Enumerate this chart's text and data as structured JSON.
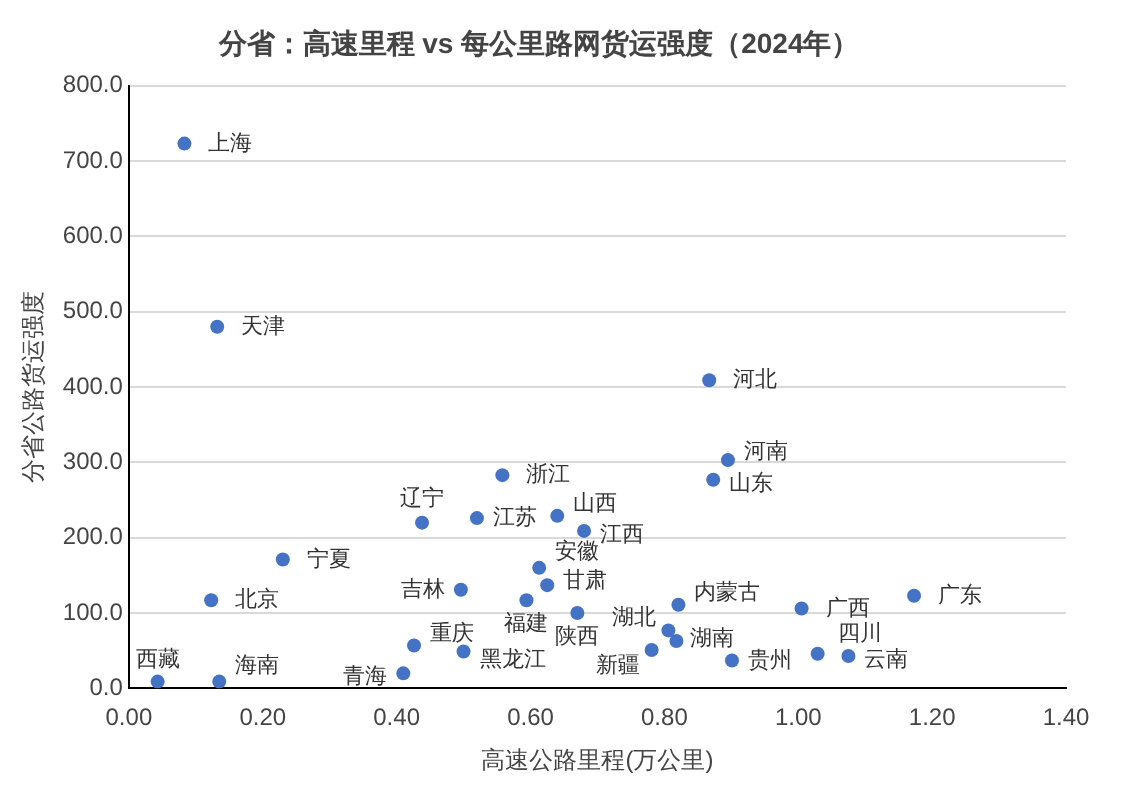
{
  "chart_data": {
    "type": "scatter",
    "title": "分省：高速里程 vs 每公里路网货运强度（2024年）",
    "xlabel": "高速公路里程(万公里)",
    "ylabel": "分省公路货运强度",
    "xlim": [
      0,
      1.4
    ],
    "xticks": [
      {
        "value": 0,
        "label": "0.00"
      },
      {
        "value": 0.2,
        "label": "0.20"
      },
      {
        "value": 0.4,
        "label": "0.40"
      },
      {
        "value": 0.6,
        "label": "0.60"
      },
      {
        "value": 0.8,
        "label": "0.80"
      },
      {
        "value": 1,
        "label": "1.00"
      },
      {
        "value": 1.2,
        "label": "1.20"
      },
      {
        "value": 1.4,
        "label": "1.40"
      }
    ],
    "ylim": [
      0,
      800
    ],
    "yticks": [
      {
        "value": 0,
        "label": "0.0"
      },
      {
        "value": 100,
        "label": "100.0"
      },
      {
        "value": 200,
        "label": "200.0"
      },
      {
        "value": 300,
        "label": "300.0"
      },
      {
        "value": 400,
        "label": "400.0"
      },
      {
        "value": 500,
        "label": "500.0"
      },
      {
        "value": 600,
        "label": "600.0"
      },
      {
        "value": 700,
        "label": "700.0"
      },
      {
        "value": 800,
        "label": "800.0"
      }
    ],
    "grid": "y",
    "legend": false,
    "marker": "circle",
    "series": [
      {
        "name": "上海",
        "color": "#4472c4",
        "x": [
          0.083
        ],
        "values": [
          723
        ]
      },
      {
        "name": "天津",
        "color": "#4472c4",
        "x": [
          0.132
        ],
        "values": [
          480
        ]
      },
      {
        "name": "北京",
        "color": "#4472c4",
        "x": [
          0.123
        ],
        "values": [
          117
        ]
      },
      {
        "name": "宁夏",
        "color": "#4472c4",
        "x": [
          0.23
        ],
        "values": [
          171
        ]
      },
      {
        "name": "西藏",
        "color": "#4472c4",
        "x": [
          0.043
        ],
        "values": [
          9
        ]
      },
      {
        "name": "海南",
        "color": "#4472c4",
        "x": [
          0.135
        ],
        "values": [
          9
        ]
      },
      {
        "name": "辽宁",
        "color": "#4472c4",
        "x": [
          0.438
        ],
        "values": [
          220
        ]
      },
      {
        "name": "江苏",
        "color": "#4472c4",
        "x": [
          0.52
        ],
        "values": [
          226
        ]
      },
      {
        "name": "浙江",
        "color": "#4472c4",
        "x": [
          0.558
        ],
        "values": [
          283
        ]
      },
      {
        "name": "山西",
        "color": "#4472c4",
        "x": [
          0.64
        ],
        "values": [
          229
        ]
      },
      {
        "name": "江西",
        "color": "#4472c4",
        "x": [
          0.68
        ],
        "values": [
          209
        ]
      },
      {
        "name": "安徽",
        "color": "#4472c4",
        "x": [
          0.613
        ],
        "values": [
          160
        ]
      },
      {
        "name": "甘肃",
        "color": "#4472c4",
        "x": [
          0.625
        ],
        "values": [
          137
        ]
      },
      {
        "name": "福建",
        "color": "#4472c4",
        "x": [
          0.594
        ],
        "values": [
          117
        ]
      },
      {
        "name": "陕西",
        "color": "#4472c4",
        "x": [
          0.67
        ],
        "values": [
          100
        ]
      },
      {
        "name": "吉林",
        "color": "#4472c4",
        "x": [
          0.496
        ],
        "values": [
          131
        ]
      },
      {
        "name": "重庆",
        "color": "#4472c4",
        "x": [
          0.426
        ],
        "values": [
          57
        ]
      },
      {
        "name": "黑龙江",
        "color": "#4472c4",
        "x": [
          0.5
        ],
        "values": [
          49
        ]
      },
      {
        "name": "青海",
        "color": "#4472c4",
        "x": [
          0.41
        ],
        "values": [
          20
        ]
      },
      {
        "name": "河北",
        "color": "#4472c4",
        "x": [
          0.867
        ],
        "values": [
          409
        ]
      },
      {
        "name": "河南",
        "color": "#4472c4",
        "x": [
          0.895
        ],
        "values": [
          303
        ]
      },
      {
        "name": "山东",
        "color": "#4472c4",
        "x": [
          0.873
        ],
        "values": [
          277
        ]
      },
      {
        "name": "内蒙古",
        "color": "#4472c4",
        "x": [
          0.821
        ],
        "values": [
          111
        ]
      },
      {
        "name": "湖北",
        "color": "#4472c4",
        "x": [
          0.806
        ],
        "values": [
          77
        ]
      },
      {
        "name": "湖南",
        "color": "#4472c4",
        "x": [
          0.818
        ],
        "values": [
          63
        ]
      },
      {
        "name": "新疆",
        "color": "#4472c4",
        "x": [
          0.781
        ],
        "values": [
          51
        ]
      },
      {
        "name": "贵州",
        "color": "#4472c4",
        "x": [
          0.901
        ],
        "values": [
          37
        ]
      },
      {
        "name": "广西",
        "color": "#4472c4",
        "x": [
          1.005
        ],
        "values": [
          106
        ]
      },
      {
        "name": "四川",
        "color": "#4472c4",
        "x": [
          1.029
        ],
        "values": [
          46
        ]
      },
      {
        "name": "云南",
        "color": "#4472c4",
        "x": [
          1.075
        ],
        "values": [
          43
        ]
      },
      {
        "name": "广东",
        "color": "#4472c4",
        "x": [
          1.173
        ],
        "values": [
          123
        ]
      }
    ]
  }
}
